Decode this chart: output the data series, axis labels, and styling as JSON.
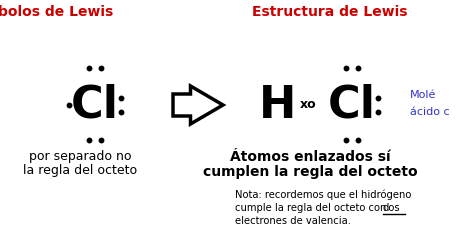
{
  "bg_color": "#ffffff",
  "title_left": "bolos de Lewis",
  "title_left_color": "#cc0000",
  "title_right": "Estructura de Lewis",
  "title_right_color": "#cc0000",
  "left_text1": "por separado no",
  "left_text2": "la regla del octeto",
  "right_bold1": "Átomos enlazados sí",
  "right_bold2": "cumplen la regla del octeto",
  "note_line1": "Nota: recordemos que el hidrógeno",
  "note_line2": "cumple la regla del octeto con ",
  "note_line2b": "dos",
  "note_line3": "electrones de valencia.",
  "mol_label1": "Molé",
  "mol_label2": "ácido c",
  "mol_color": "#3333cc"
}
